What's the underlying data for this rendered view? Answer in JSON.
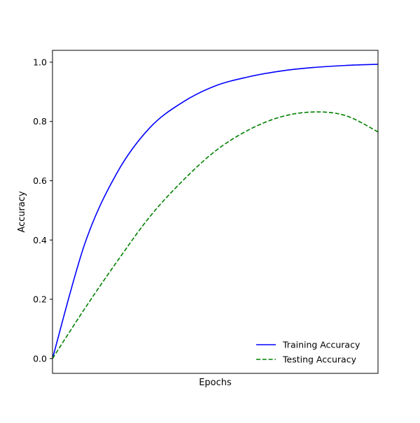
{
  "chart_data": {
    "type": "line",
    "title": "",
    "xlabel": "Epochs",
    "ylabel": "Accuracy",
    "xlim": [
      0,
      1
    ],
    "ylim": [
      -0.05,
      1.04
    ],
    "x_ticks_visible": false,
    "yticks": [
      0.0,
      0.2,
      0.4,
      0.6,
      0.8,
      1.0
    ],
    "ytick_labels": [
      "0.0",
      "0.2",
      "0.4",
      "0.6",
      "0.8",
      "1.0"
    ],
    "grid": false,
    "legend_position": "lower-right",
    "x": [
      0,
      0.1,
      0.2,
      0.3,
      0.4,
      0.5,
      0.6,
      0.7,
      0.8,
      0.9,
      1.0
    ],
    "series": [
      {
        "name": "Training Accuracy",
        "color": "#0000ff",
        "linestyle": "solid",
        "values": [
          0.0,
          0.39,
          0.63,
          0.78,
          0.865,
          0.92,
          0.95,
          0.97,
          0.982,
          0.989,
          0.993
        ]
      },
      {
        "name": "Testing Accuracy",
        "color": "#008000",
        "linestyle": "dashed",
        "values": [
          0.0,
          0.17,
          0.33,
          0.48,
          0.6,
          0.7,
          0.77,
          0.815,
          0.832,
          0.82,
          0.765
        ]
      }
    ]
  }
}
